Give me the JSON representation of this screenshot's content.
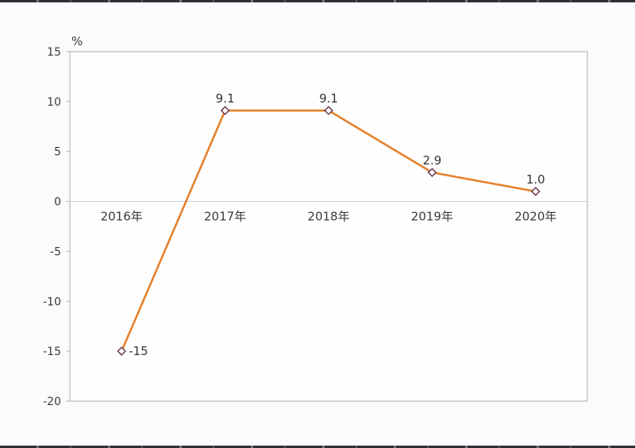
{
  "page": {
    "background_color": "#fbfafc"
  },
  "decoration": {
    "top_strip": "dark-dashed-border",
    "bottom_strip": "dark-dashed-border",
    "strip_color": "#2f2e34"
  },
  "chart_data": {
    "type": "line",
    "title": "",
    "xlabel": "",
    "ylabel": "%",
    "categories": [
      "2016年",
      "2017年",
      "2018年",
      "2019年",
      "2020年"
    ],
    "values": [
      -15,
      9.1,
      9.1,
      2.9,
      1.0
    ],
    "point_labels": [
      "-15",
      "9.1",
      "9.1",
      "2.9",
      "1.0"
    ],
    "point_label_positions": [
      "right",
      "above",
      "above",
      "above",
      "above"
    ],
    "yticks": [
      15,
      10,
      5,
      0,
      -5,
      -10,
      -15,
      -20
    ],
    "ylim": [
      -20,
      15
    ],
    "grid": "zero-line-only",
    "legend": "none",
    "plot_border": "full-rectangle",
    "colors": {
      "line": "#e5812b",
      "marker_stroke": "#6b3a52",
      "marker_fill": "#ffffff",
      "axis_border": "#b9b9bf",
      "zero_line": "#c9c9ce",
      "tick_text": "#3a3a3e",
      "label_text": "#323236",
      "plot_background": "#fefeff"
    }
  }
}
